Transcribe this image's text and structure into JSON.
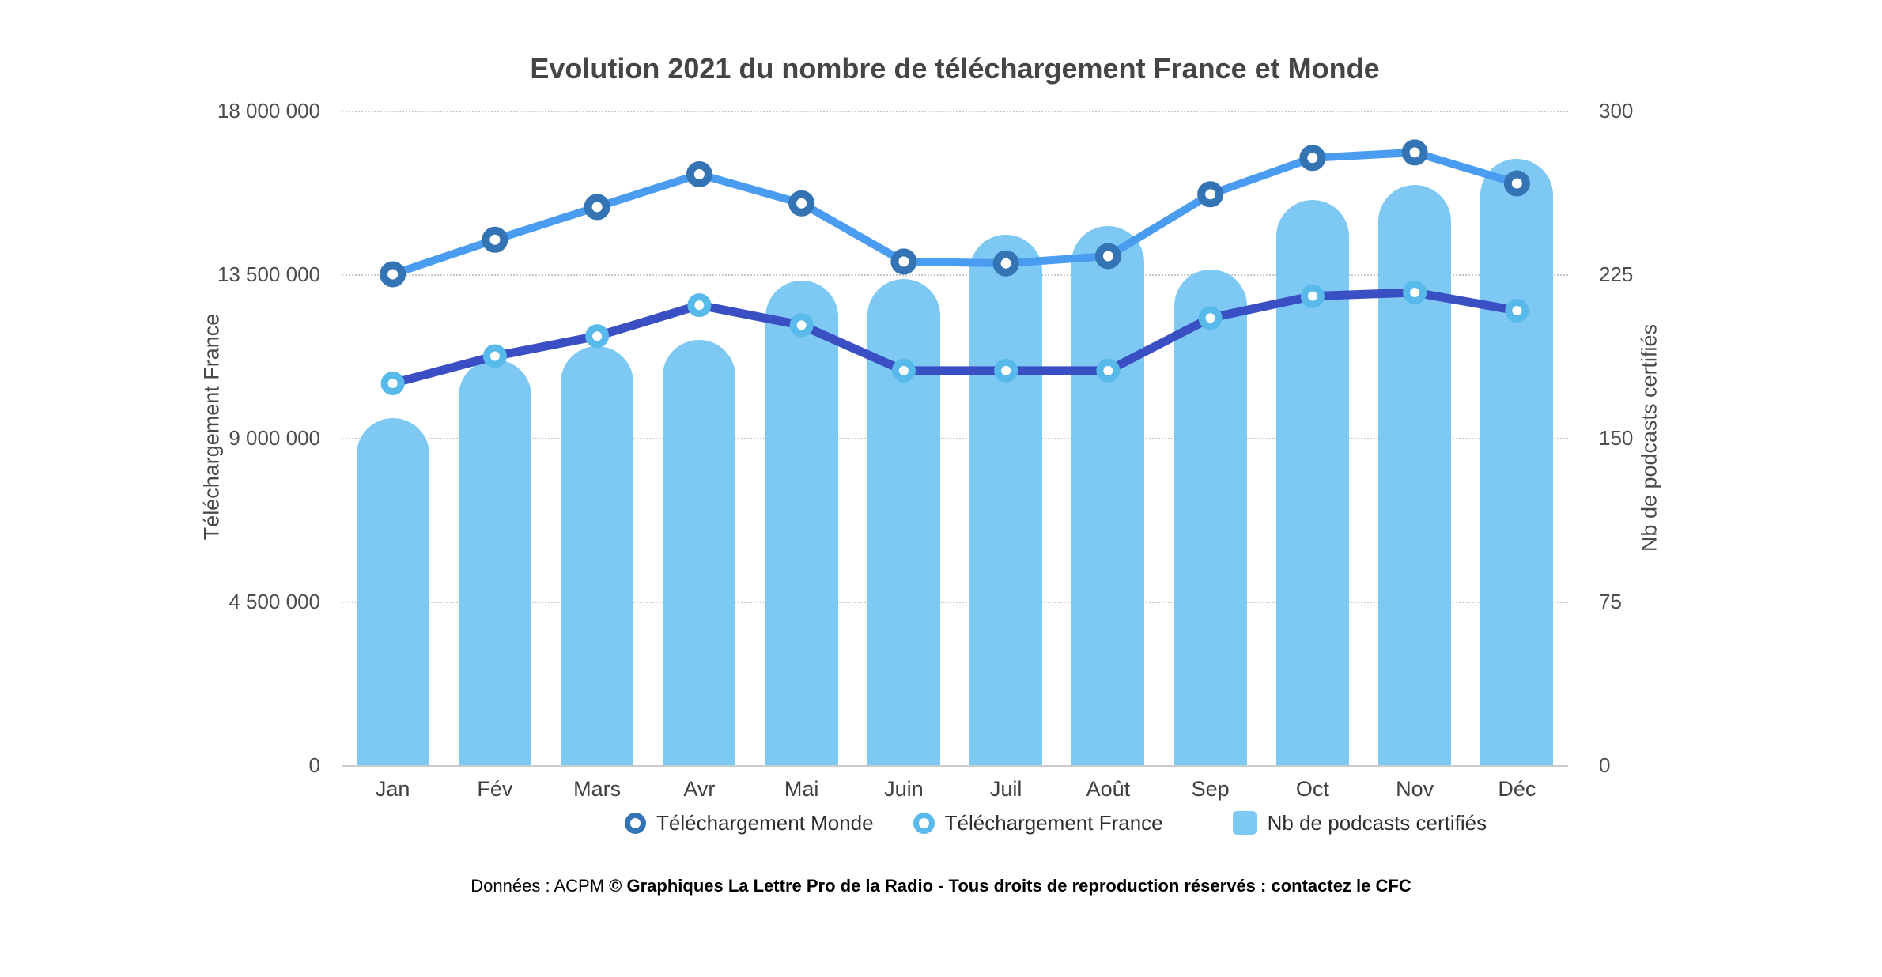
{
  "chart": {
    "title": "Evolution 2021 du nombre de téléchargement France et Monde",
    "left_axis": {
      "title": "Téléchargement France",
      "ticks": [
        {
          "label": "18 000 000",
          "value": 18000000
        },
        {
          "label": "13 500 000",
          "value": 13500000
        },
        {
          "label": "9 000 000",
          "value": 9000000
        },
        {
          "label": "4 500 000",
          "value": 4500000
        },
        {
          "label": "0",
          "value": 0
        }
      ]
    },
    "right_axis": {
      "title": "Nb de podcasts certifiés",
      "ticks": [
        {
          "label": "300",
          "value": 300
        },
        {
          "label": "225",
          "value": 225
        },
        {
          "label": "150",
          "value": 150
        },
        {
          "label": "75",
          "value": 75
        },
        {
          "label": "0",
          "value": 0
        }
      ]
    }
  },
  "chart_data": {
    "type": "combo-bar-line",
    "categories": [
      "Jan",
      "Fév",
      "Mars",
      "Avr",
      "Mai",
      "Juin",
      "Juil",
      "Août",
      "Sep",
      "Oct",
      "Nov",
      "Déc"
    ],
    "series": [
      {
        "name": "Téléchargement Monde",
        "kind": "line",
        "axis": "left",
        "line_color": "#4A9CF1",
        "marker_color": "#3474B4",
        "values": [
          13500000,
          14450000,
          15350000,
          16250000,
          15450000,
          13850000,
          13800000,
          14000000,
          15700000,
          16700000,
          16850000,
          16000000
        ]
      },
      {
        "name": "Téléchargement France",
        "kind": "line",
        "axis": "left",
        "line_color": "#3A4FC4",
        "marker_color": "#58BAEB",
        "values": [
          10500000,
          11250000,
          11800000,
          12650000,
          12100000,
          10850000,
          10850000,
          10850000,
          12300000,
          12900000,
          13000000,
          12500000
        ]
      },
      {
        "name": "Nb de podcasts certifiés",
        "kind": "bar",
        "axis": "right",
        "color": "#7DC9F4",
        "values": [
          159,
          186,
          192,
          195,
          222,
          223,
          243,
          247,
          227,
          259,
          266,
          278
        ]
      }
    ],
    "left_ylim": [
      0,
      18000000
    ],
    "right_ylim": [
      0,
      300
    ],
    "grid": "horizontal dotted",
    "legend_position": "bottom"
  },
  "colors": {
    "bar": "#7DC9F4",
    "monde_line": "#4A9CF1",
    "monde_marker": "#3474B4",
    "france_line": "#3A4FC4",
    "france_marker": "#58BAEB",
    "gridline": "#c6c6c6",
    "axis_line": "#cccccc",
    "title_text": "#454545",
    "tick_text": "#4d4d4d"
  },
  "footer": {
    "source": "Données : ACPM",
    "copyright": "© Graphiques La Lettre Pro de la Radio - Tous droits de reproduction réservés : contactez le CFC"
  }
}
